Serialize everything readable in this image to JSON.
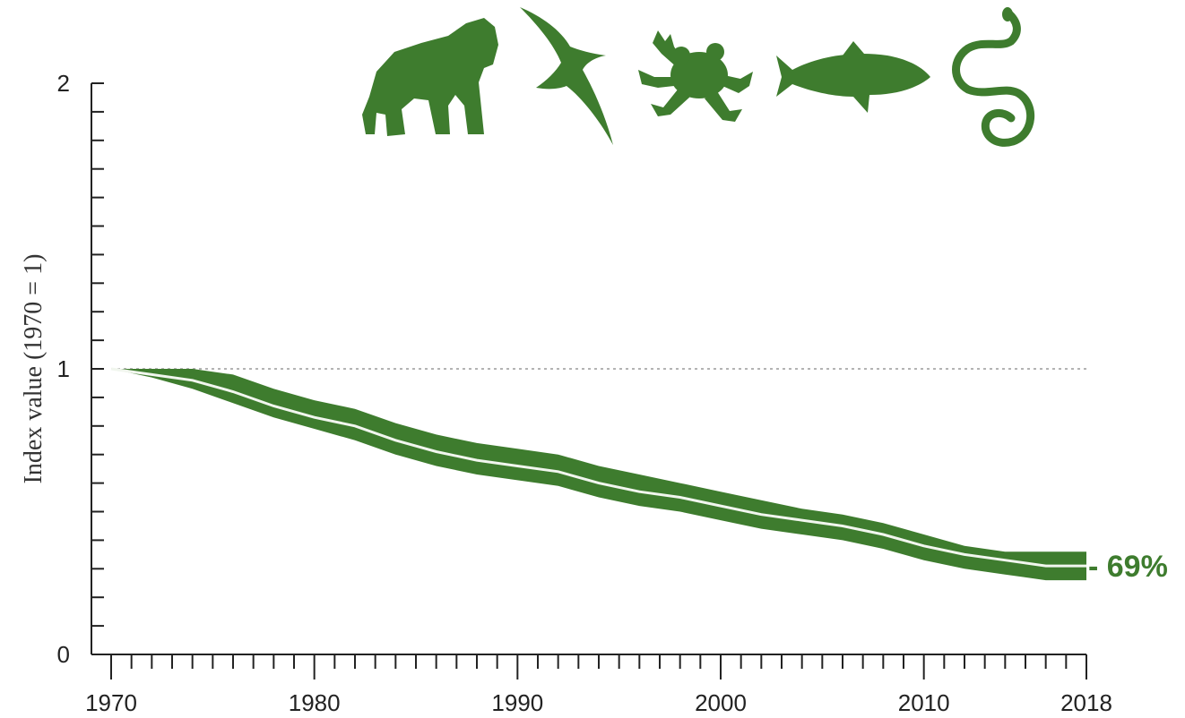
{
  "chart_data": {
    "type": "line",
    "title": "",
    "xlabel": "",
    "ylabel": "Index value (1970 = 1)",
    "x_ticks": [
      1970,
      1980,
      1990,
      2000,
      2010,
      2018
    ],
    "y_ticks": [
      0,
      1,
      2
    ],
    "xlim": [
      1970,
      2018
    ],
    "ylim": [
      0,
      2
    ],
    "baseline": 1,
    "grid": false,
    "legend": "none",
    "end_label": "- 69%",
    "series": [
      {
        "x": [
          1970,
          1972,
          1974,
          1976,
          1978,
          1980,
          1982,
          1984,
          1986,
          1988,
          1990,
          1992,
          1994,
          1996,
          1998,
          2000,
          2002,
          2004,
          2006,
          2008,
          2010,
          2012,
          2014,
          2016,
          2018
        ],
        "y": [
          1.0,
          0.98,
          0.96,
          0.92,
          0.87,
          0.83,
          0.8,
          0.75,
          0.71,
          0.68,
          0.66,
          0.64,
          0.6,
          0.57,
          0.55,
          0.52,
          0.49,
          0.47,
          0.45,
          0.42,
          0.38,
          0.35,
          0.33,
          0.31,
          0.31
        ],
        "upper": [
          1.0,
          1.0,
          1.0,
          0.98,
          0.93,
          0.89,
          0.86,
          0.81,
          0.77,
          0.74,
          0.72,
          0.7,
          0.66,
          0.63,
          0.6,
          0.57,
          0.54,
          0.51,
          0.49,
          0.46,
          0.42,
          0.38,
          0.36,
          0.36,
          0.36
        ],
        "lower": [
          1.0,
          0.97,
          0.93,
          0.88,
          0.83,
          0.79,
          0.75,
          0.7,
          0.66,
          0.63,
          0.61,
          0.59,
          0.55,
          0.52,
          0.5,
          0.47,
          0.44,
          0.42,
          0.4,
          0.37,
          0.33,
          0.3,
          0.28,
          0.26,
          0.26
        ]
      }
    ]
  },
  "colors": {
    "series": "#3e7c2e",
    "center_line": "#f1f6ee",
    "axis": "#222222",
    "baseline": "#9a9a9a"
  },
  "icons": [
    "gorilla-icon",
    "bird-icon",
    "frog-icon",
    "fish-icon",
    "snake-icon"
  ]
}
